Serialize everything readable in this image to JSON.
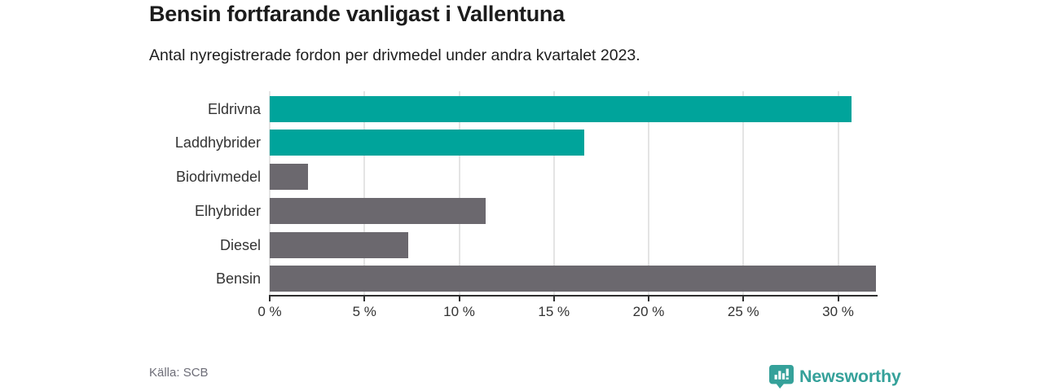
{
  "header": {
    "title": "Bensin fortfarande vanligast i Vallentuna",
    "subtitle": "Antal nyregistrerade fordon per drivmedel under andra kvartalet 2023."
  },
  "chart_data": {
    "type": "bar",
    "orientation": "horizontal",
    "title": "Bensin fortfarande vanligast i Vallentuna",
    "subtitle": "Antal nyregistrerade fordon per drivmedel under andra kvartalet 2023.",
    "categories": [
      "Eldrivna",
      "Laddhybrider",
      "Biodrivmedel",
      "Elhybrider",
      "Diesel",
      "Bensin"
    ],
    "values": [
      30.7,
      16.6,
      2.0,
      11.4,
      7.3,
      32.0
    ],
    "unit": "%",
    "xlim": [
      0,
      32
    ],
    "x_ticks": [
      0,
      5,
      10,
      15,
      20,
      25,
      30
    ],
    "x_tick_suffix": " %",
    "grid": true,
    "legend": false,
    "bar_color_keys": [
      "accent",
      "accent",
      "neutral",
      "neutral",
      "neutral",
      "neutral"
    ],
    "colors": {
      "accent": "#00a49b",
      "neutral": "#6b686e",
      "axis": "#2f2f2f",
      "gridline": "#e4e4e4",
      "label": "#333333"
    }
  },
  "footer": {
    "source": "Källa: SCB",
    "brand": "Newsworthy",
    "brand_color": "#35a19a"
  }
}
